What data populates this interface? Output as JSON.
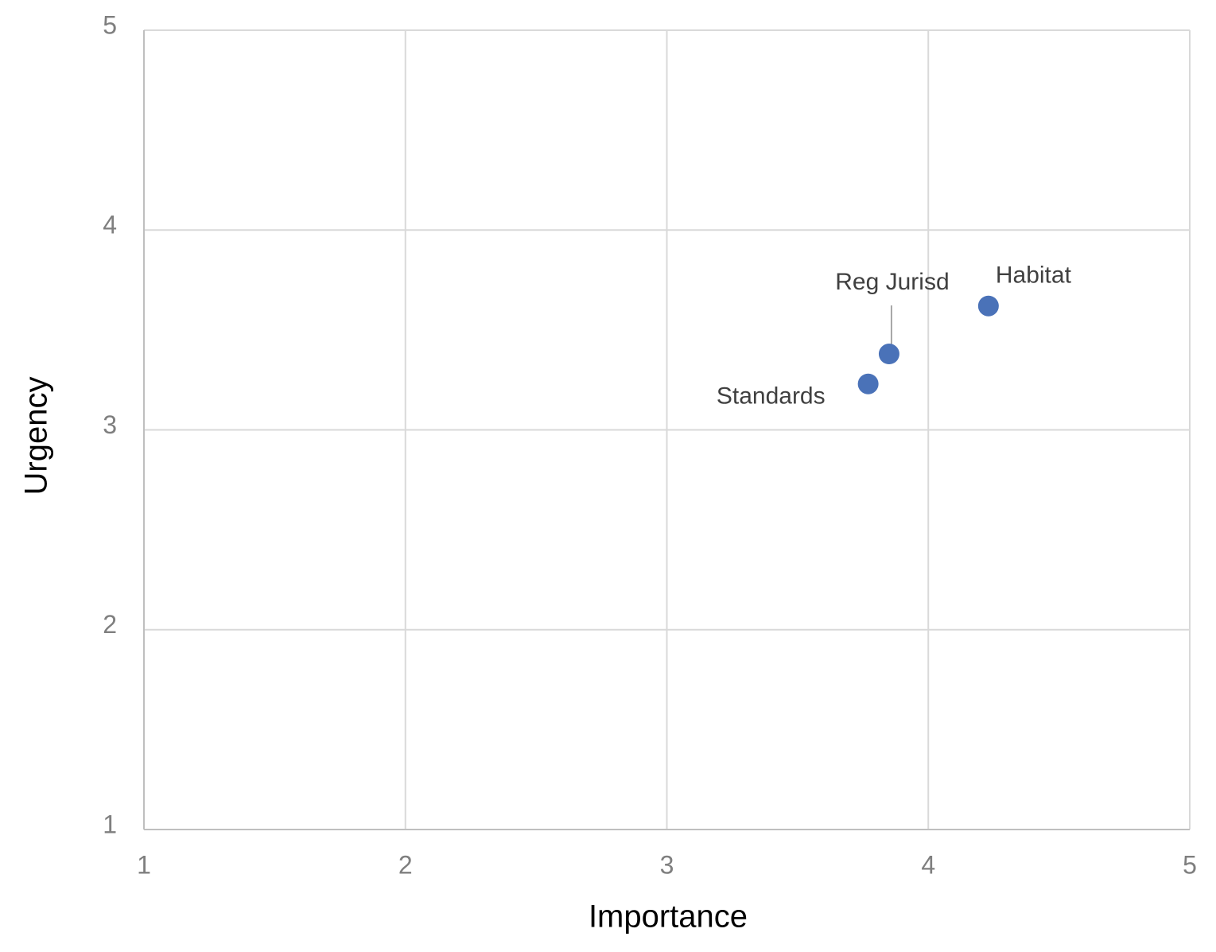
{
  "chart_data": {
    "type": "scatter",
    "x_label": "Importance",
    "y_label": "Urgency",
    "series": [
      {
        "color": "#4a72b8",
        "labels": [
          "Habitat",
          "Reg Jurisd",
          "Standards"
        ],
        "x": [
          4.23,
          3.85,
          3.77
        ],
        "values": [
          3.62,
          3.38,
          3.23
        ]
      }
    ],
    "xlim": [
      1,
      5
    ],
    "xticks": [
      1,
      2,
      3,
      4,
      5
    ],
    "ylim": [
      1,
      5
    ],
    "yticks": [
      1,
      2,
      3,
      4,
      5
    ],
    "grid": true
  }
}
